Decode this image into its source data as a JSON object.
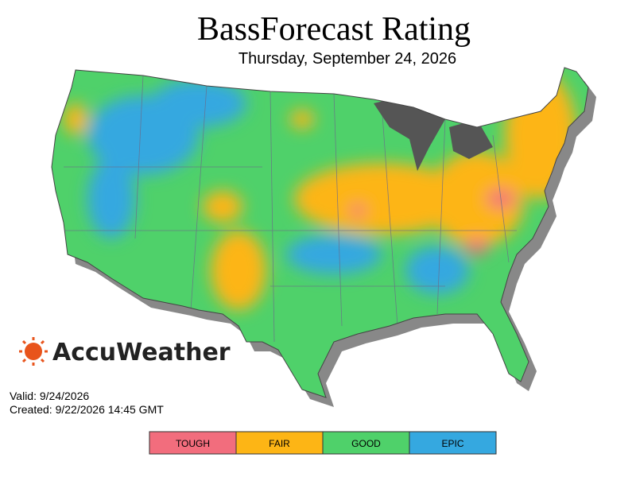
{
  "header": {
    "title": "BassForecast Rating",
    "subtitle": "Thursday, September 24, 2026"
  },
  "brand": "AccuWeather",
  "info": {
    "valid": "Valid: 9/24/2026",
    "created": "Created: 9/22/2026 14:45 GMT"
  },
  "legend": {
    "items": [
      {
        "label": "TOUGH",
        "color": "#f26d7d"
      },
      {
        "label": "FAIR",
        "color": "#fdb515"
      },
      {
        "label": "GOOD",
        "color": "#4fd16a"
      },
      {
        "label": "EPIC",
        "color": "#35a8e0"
      }
    ]
  }
}
